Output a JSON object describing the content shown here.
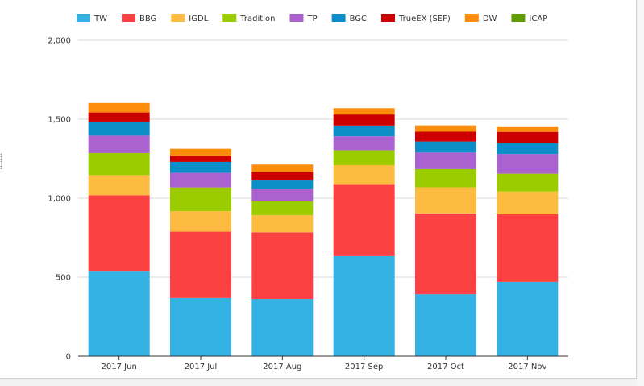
{
  "chart_data": {
    "type": "bar",
    "stacked": true,
    "categories": [
      "2017 Jun",
      "2017 Jul",
      "2017 Aug",
      "2017 Sep",
      "2017 Oct",
      "2017 Nov"
    ],
    "series": [
      {
        "name": "TW",
        "color": "#33b2e3",
        "values": [
          540,
          368,
          362,
          633,
          392,
          470
        ]
      },
      {
        "name": "BBG",
        "color": "#fc4143",
        "values": [
          478,
          420,
          422,
          456,
          512,
          428
        ]
      },
      {
        "name": "IGDL",
        "color": "#fdbb3f",
        "values": [
          128,
          130,
          108,
          120,
          165,
          145
        ]
      },
      {
        "name": "Tradition",
        "color": "#9bcc00",
        "values": [
          140,
          150,
          88,
          95,
          115,
          112
        ]
      },
      {
        "name": "TP",
        "color": "#aa62d1",
        "values": [
          110,
          92,
          80,
          88,
          105,
          125
        ]
      },
      {
        "name": "BGC",
        "color": "#0c8ec9",
        "values": [
          85,
          70,
          57,
          68,
          70,
          68
        ]
      },
      {
        "name": "TrueEX (SEF)",
        "color": "#cc0000",
        "values": [
          62,
          38,
          48,
          70,
          62,
          72
        ]
      },
      {
        "name": "DW",
        "color": "#fc8c0c",
        "values": [
          60,
          45,
          48,
          40,
          40,
          35
        ]
      },
      {
        "name": "ICAP",
        "color": "#619c00",
        "values": [
          0,
          0,
          0,
          0,
          0,
          0
        ]
      }
    ],
    "yticks": [
      "0",
      "500",
      "1,000",
      "1,500",
      "2,000"
    ],
    "ylim": [
      0,
      2000
    ],
    "ytick_step": 500,
    "grid": true,
    "legend_position": "top"
  }
}
